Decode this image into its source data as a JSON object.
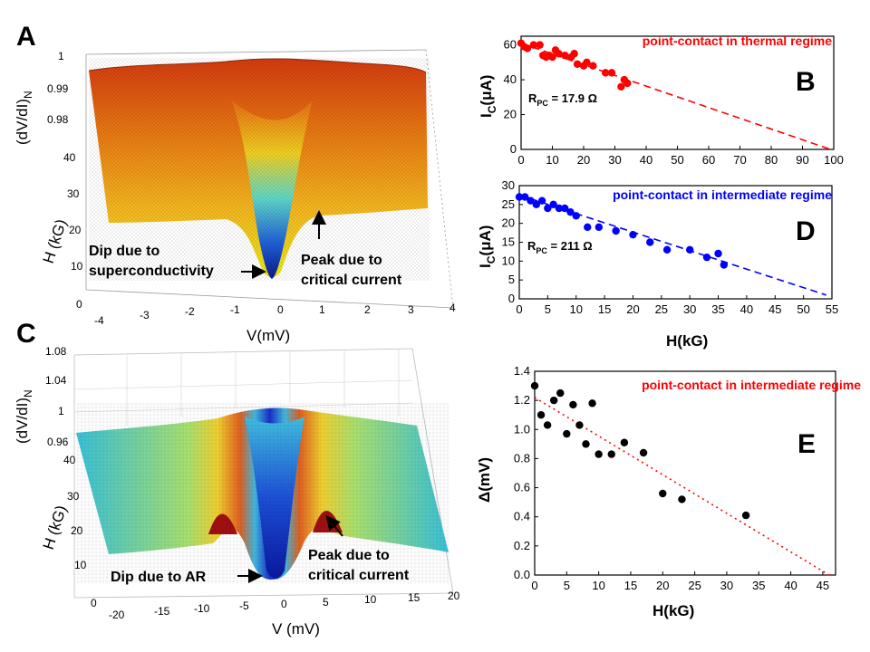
{
  "panels": {
    "A": {
      "letter": "A",
      "zlabel": "(dV/dI)",
      "zlabel_sub": "N",
      "zticks": [
        "1",
        "0.99",
        "0.98"
      ],
      "hlabel": "H (kG)",
      "hticks": [
        "40",
        "30",
        "20",
        "10",
        "0"
      ],
      "vlabel": "V(mV)",
      "vticks": [
        "-4",
        "-3",
        "-2",
        "-1",
        "0",
        "1",
        "2",
        "3",
        "4"
      ],
      "annotations": {
        "dip": [
          "Dip due to",
          "superconductivity"
        ],
        "peak": [
          "Peak due to",
          "critical current"
        ]
      },
      "colors": {
        "low": "#0a1fb0",
        "mid": "#2fc6e0",
        "high": "#e24410"
      }
    },
    "C": {
      "letter": "C",
      "zlabel": "(dV/dI)",
      "zlabel_sub": "N",
      "zticks": [
        "1.08",
        "1.04",
        "1",
        "0.96"
      ],
      "hlabel": "H (kG)",
      "hticks": [
        "40",
        "30",
        "20",
        "10",
        "0"
      ],
      "vlabel": "V (mV)",
      "vticks": [
        "-20",
        "-15",
        "-10",
        "-5",
        "0",
        "5",
        "10",
        "15",
        "20"
      ],
      "annotations": {
        "dip": [
          "Dip due to AR"
        ],
        "peak": [
          "Peak due to",
          "critical current"
        ]
      },
      "colors": {
        "low": "#1428c8",
        "mid": "#34c8d8",
        "high": "#b01010"
      }
    }
  },
  "chart_data": [
    {
      "id": "B",
      "type": "scatter",
      "letter": "B",
      "title": "point-contact in thermal regime",
      "title_color": "#ff0000",
      "marker_color": "#ff0000",
      "xlabel": "",
      "ylabel": "I",
      "ylabel_sub": "C",
      "ylabel_unit": "(μA)",
      "xlim": [
        0,
        100
      ],
      "ylim": [
        0,
        65
      ],
      "xticks": [
        0,
        10,
        20,
        30,
        40,
        50,
        60,
        70,
        80,
        90,
        100
      ],
      "yticks": [
        0,
        20,
        40,
        60
      ],
      "annotation_main": "R",
      "annotation_sub": "PC",
      "annotation_value": " = 17.9 Ω",
      "fit": {
        "x": [
          0,
          99
        ],
        "y": [
          61,
          0
        ],
        "style": "dashed"
      },
      "x": [
        0,
        1,
        2,
        4,
        6,
        7,
        8,
        9,
        10,
        11,
        12,
        14,
        16,
        17,
        18,
        20,
        21,
        23,
        27,
        29,
        32,
        33,
        34
      ],
      "y": [
        61,
        59,
        58,
        60,
        60,
        54,
        53,
        54,
        53,
        57,
        55,
        54,
        53,
        55,
        49,
        48,
        50,
        48,
        44,
        44,
        36,
        40,
        38
      ]
    },
    {
      "id": "D",
      "type": "scatter",
      "letter": "D",
      "title": "point-contact in intermediate regime",
      "title_color": "#0000ff",
      "marker_color": "#0000ff",
      "xlabel": "H(kG)",
      "ylabel": "I",
      "ylabel_sub": "C",
      "ylabel_unit": "(μA)",
      "xlim": [
        0,
        55
      ],
      "ylim": [
        0,
        30
      ],
      "xticks": [
        0,
        5,
        10,
        15,
        20,
        25,
        30,
        35,
        40,
        45,
        50,
        55
      ],
      "yticks": [
        0,
        5,
        10,
        15,
        20,
        25,
        30
      ],
      "annotation_main": "R",
      "annotation_sub": "PC",
      "annotation_value": " = 211 Ω",
      "fit": {
        "x": [
          0,
          54
        ],
        "y": [
          27.5,
          1
        ],
        "style": "dashed"
      },
      "x": [
        0,
        1,
        2,
        3,
        4,
        5,
        6,
        7,
        8,
        9,
        10,
        12,
        14,
        17,
        20,
        23,
        26,
        30,
        33,
        35,
        36
      ],
      "y": [
        27,
        27,
        26,
        25,
        26,
        24,
        25,
        24,
        24,
        23,
        22,
        19,
        19,
        18,
        17,
        15,
        13,
        13,
        11,
        12,
        9
      ]
    },
    {
      "id": "E",
      "type": "scatter",
      "letter": "E",
      "title": "point-contact in intermediate regime",
      "title_color": "#ff0000",
      "marker_color": "#000000",
      "xlabel": "H(kG)",
      "ylabel": "Δ(mV)",
      "xlim": [
        0,
        47
      ],
      "ylim": [
        0,
        1.4
      ],
      "xticks": [
        0,
        5,
        10,
        15,
        20,
        25,
        30,
        35,
        40,
        45
      ],
      "yticks": [
        "0.0",
        "0.2",
        "0.4",
        "0.6",
        "0.8",
        "1.0",
        "1.2",
        "1.4"
      ],
      "fit": {
        "x": [
          0,
          46
        ],
        "y": [
          1.22,
          0
        ],
        "style": "dotted"
      },
      "x": [
        0,
        1,
        2,
        3,
        4,
        5,
        6,
        7,
        8,
        9,
        10,
        12,
        14,
        17,
        20,
        23,
        33
      ],
      "y": [
        1.3,
        1.1,
        1.03,
        1.2,
        1.25,
        0.97,
        1.17,
        1.03,
        0.9,
        1.18,
        0.83,
        0.83,
        0.91,
        0.84,
        0.56,
        0.52,
        0.41
      ]
    }
  ]
}
